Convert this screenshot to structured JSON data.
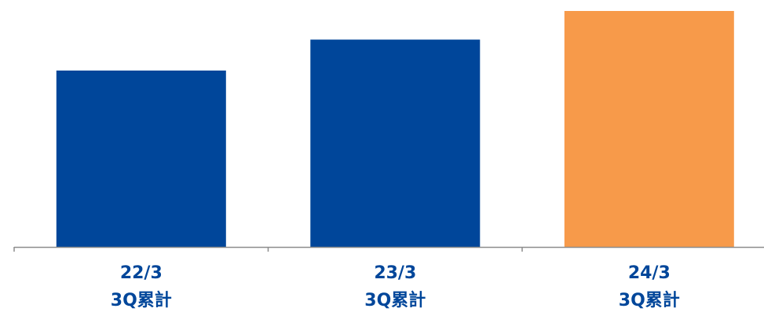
{
  "chart_data": {
    "type": "bar",
    "categories": [
      {
        "line1": "22/3",
        "line2": "3Q累計"
      },
      {
        "line1": "23/3",
        "line2": "3Q累計"
      },
      {
        "line1": "24/3",
        "line2": "3Q累計"
      }
    ],
    "values": [
      74,
      87,
      99
    ],
    "ylim": [
      0,
      100
    ],
    "grid": false,
    "legend": "none",
    "colors": {
      "past": "#00469A",
      "current": "#F79A4A",
      "label": "#00469A",
      "axis": "#8C8C8C"
    },
    "bar_colors": [
      "#00469A",
      "#00469A",
      "#F79A4A"
    ]
  }
}
